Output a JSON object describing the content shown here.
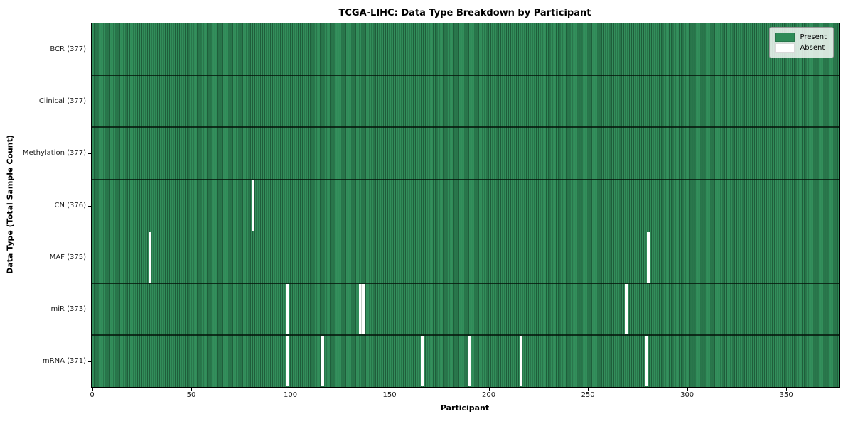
{
  "chart_data": {
    "type": "heatmap",
    "title": "TCGA-LIHC: Data Type Breakdown by Participant",
    "xlabel": "Participant",
    "ylabel": "Data Type (Total Sample Count)",
    "x_range": [
      0,
      377
    ],
    "n_participants": 377,
    "x_ticks": [
      0,
      50,
      100,
      150,
      200,
      250,
      300,
      350
    ],
    "grid": false,
    "legend_position": "upper right",
    "legend": [
      {
        "label": "Present",
        "color": "#2e8b57"
      },
      {
        "label": "Absent",
        "color": "#ffffff"
      }
    ],
    "rows": [
      {
        "label": "BCR (377)",
        "name": "BCR",
        "total": 377,
        "absent": []
      },
      {
        "label": "Clinical (377)",
        "name": "Clinical",
        "total": 377,
        "absent": []
      },
      {
        "label": "Methylation (377)",
        "name": "Methylation",
        "total": 377,
        "absent": []
      },
      {
        "label": "CN (376)",
        "name": "CN",
        "total": 376,
        "absent": [
          81
        ]
      },
      {
        "label": "MAF (375)",
        "name": "MAF",
        "total": 375,
        "absent": [
          29,
          280
        ]
      },
      {
        "label": "miR (373)",
        "name": "miR",
        "total": 373,
        "absent": [
          98,
          135,
          136,
          269
        ]
      },
      {
        "label": "mRNA (371)",
        "name": "mRNA",
        "total": 371,
        "absent": [
          98,
          116,
          166,
          190,
          216,
          279
        ]
      }
    ],
    "colors": {
      "present": "#2e8b57",
      "absent": "#ffffff"
    }
  }
}
